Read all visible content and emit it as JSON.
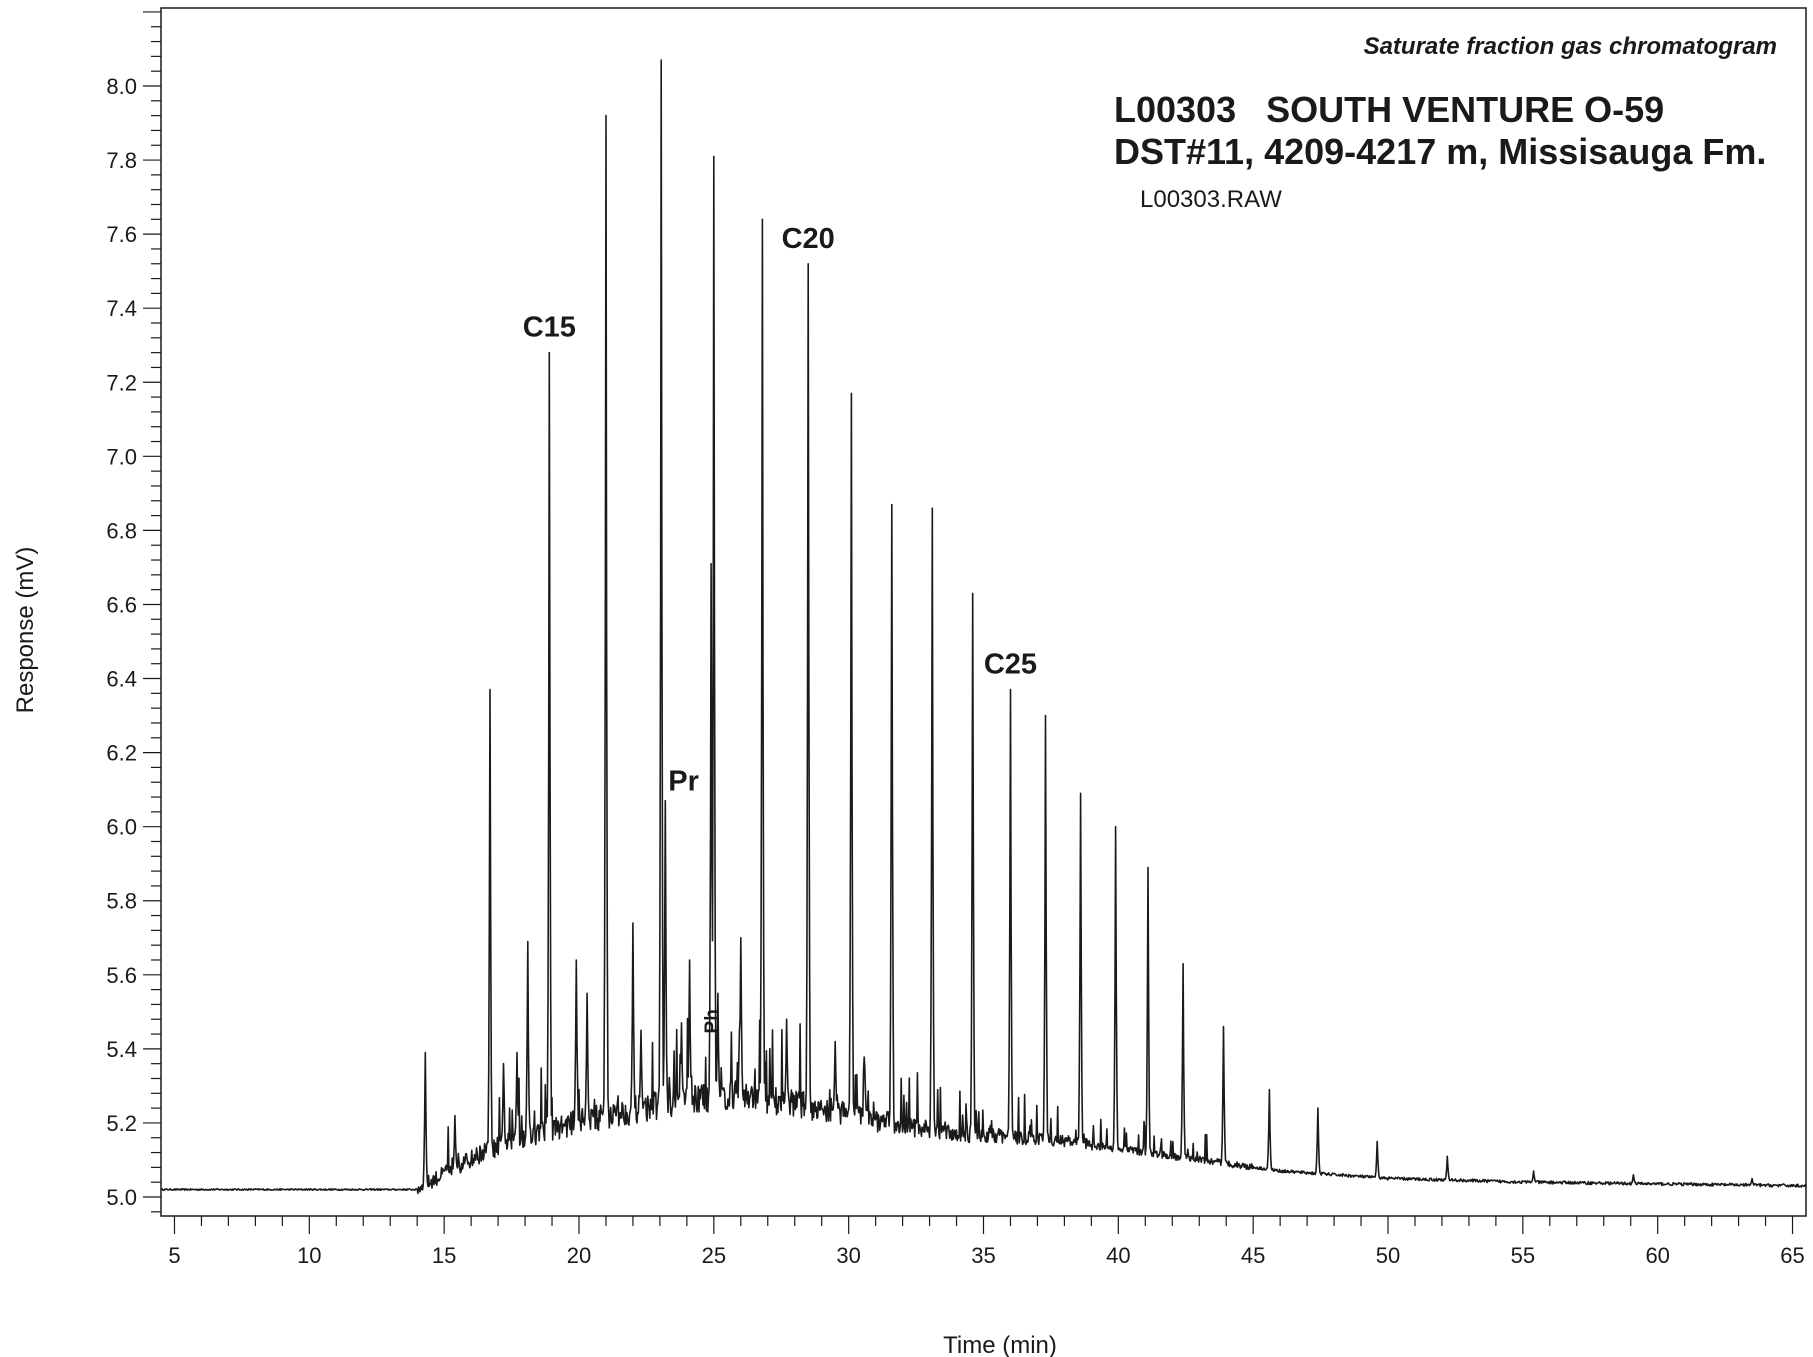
{
  "chart_data": {
    "type": "line",
    "title": "Saturate fraction gas chromatogram",
    "sample_line_1": "L00303   SOUTH VENTURE O-59",
    "sample_line_2": "DST#11, 4209-4217 m, Missisauga Fm.",
    "file_name": "L00303.RAW",
    "xlabel": "Time (min)",
    "ylabel": "Response (mV)",
    "xlim": [
      4.5,
      65.5
    ],
    "ylim": [
      4.96,
      8.2
    ],
    "x_ticks": [
      5,
      10,
      15,
      20,
      25,
      30,
      35,
      40,
      45,
      50,
      55,
      60,
      65
    ],
    "x_tick_labels": [
      "5",
      "10",
      "15",
      "20",
      "25",
      "30",
      "35",
      "40",
      "45",
      "50",
      "55",
      "60",
      "65"
    ],
    "y_ticks": [
      5.0,
      5.2,
      5.4,
      5.6,
      5.8,
      6.0,
      6.2,
      6.4,
      6.6,
      6.8,
      7.0,
      7.2,
      7.4,
      7.6,
      7.8,
      8.0
    ],
    "y_tick_labels": [
      "5.0",
      "5.2",
      "5.4",
      "5.6",
      "5.8",
      "6.0",
      "6.2",
      "6.4",
      "6.6",
      "6.8",
      "7.0",
      "7.2",
      "7.4",
      "7.6",
      "7.8",
      "8.0"
    ],
    "grid": false,
    "line_color": "#1a1a1a",
    "baseline": [
      [
        4.5,
        5.02
      ],
      [
        14.0,
        5.02
      ],
      [
        15.0,
        5.06
      ],
      [
        16.5,
        5.12
      ],
      [
        18.0,
        5.16
      ],
      [
        20.0,
        5.2
      ],
      [
        22.0,
        5.23
      ],
      [
        24.0,
        5.26
      ],
      [
        26.0,
        5.27
      ],
      [
        28.0,
        5.25
      ],
      [
        30.0,
        5.22
      ],
      [
        32.0,
        5.19
      ],
      [
        34.0,
        5.17
      ],
      [
        36.0,
        5.16
      ],
      [
        38.0,
        5.15
      ],
      [
        40.0,
        5.13
      ],
      [
        42.0,
        5.11
      ],
      [
        44.0,
        5.09
      ],
      [
        46.0,
        5.07
      ],
      [
        48.0,
        5.06
      ],
      [
        50.0,
        5.05
      ],
      [
        55.0,
        5.04
      ],
      [
        60.0,
        5.035
      ],
      [
        65.5,
        5.03
      ]
    ],
    "peaks": [
      {
        "x": 14.3,
        "y": 5.39
      },
      {
        "x": 15.4,
        "y": 5.22
      },
      {
        "x": 16.7,
        "y": 6.37
      },
      {
        "x": 17.2,
        "y": 5.36
      },
      {
        "x": 17.7,
        "y": 5.39
      },
      {
        "x": 18.1,
        "y": 5.69
      },
      {
        "x": 18.9,
        "y": 7.28
      },
      {
        "x": 19.9,
        "y": 5.64
      },
      {
        "x": 20.3,
        "y": 5.55
      },
      {
        "x": 21.0,
        "y": 7.92
      },
      {
        "x": 22.0,
        "y": 5.74
      },
      {
        "x": 22.3,
        "y": 5.45
      },
      {
        "x": 23.05,
        "y": 8.07
      },
      {
        "x": 23.2,
        "y": 6.07
      },
      {
        "x": 23.8,
        "y": 5.47
      },
      {
        "x": 24.1,
        "y": 5.64
      },
      {
        "x": 24.9,
        "y": 6.71
      },
      {
        "x": 25.0,
        "y": 7.81
      },
      {
        "x": 25.15,
        "y": 5.55
      },
      {
        "x": 26.0,
        "y": 5.7
      },
      {
        "x": 26.8,
        "y": 7.64
      },
      {
        "x": 27.7,
        "y": 5.48
      },
      {
        "x": 28.5,
        "y": 7.52
      },
      {
        "x": 29.5,
        "y": 5.42
      },
      {
        "x": 30.1,
        "y": 7.17
      },
      {
        "x": 30.6,
        "y": 5.35
      },
      {
        "x": 31.6,
        "y": 6.87
      },
      {
        "x": 33.1,
        "y": 6.86
      },
      {
        "x": 34.6,
        "y": 6.63
      },
      {
        "x": 36.0,
        "y": 6.37
      },
      {
        "x": 37.3,
        "y": 6.3
      },
      {
        "x": 38.6,
        "y": 6.09
      },
      {
        "x": 39.9,
        "y": 6.0
      },
      {
        "x": 41.1,
        "y": 5.89
      },
      {
        "x": 42.4,
        "y": 5.63
      },
      {
        "x": 43.9,
        "y": 5.46
      },
      {
        "x": 45.6,
        "y": 5.29
      },
      {
        "x": 47.4,
        "y": 5.24
      },
      {
        "x": 49.6,
        "y": 5.15
      },
      {
        "x": 52.2,
        "y": 5.11
      },
      {
        "x": 55.4,
        "y": 5.07
      },
      {
        "x": 59.1,
        "y": 5.06
      },
      {
        "x": 63.5,
        "y": 5.05
      }
    ],
    "annotations": [
      {
        "label": "C15",
        "x": 18.9,
        "y": 7.28
      },
      {
        "label": "C20",
        "x": 28.5,
        "y": 7.52
      },
      {
        "label": "C25",
        "x": 36.0,
        "y": 6.37
      },
      {
        "label": "Pr",
        "x": 23.2,
        "y": 6.07
      },
      {
        "label": "Ph",
        "x": 25.15,
        "y": 5.55
      }
    ]
  }
}
